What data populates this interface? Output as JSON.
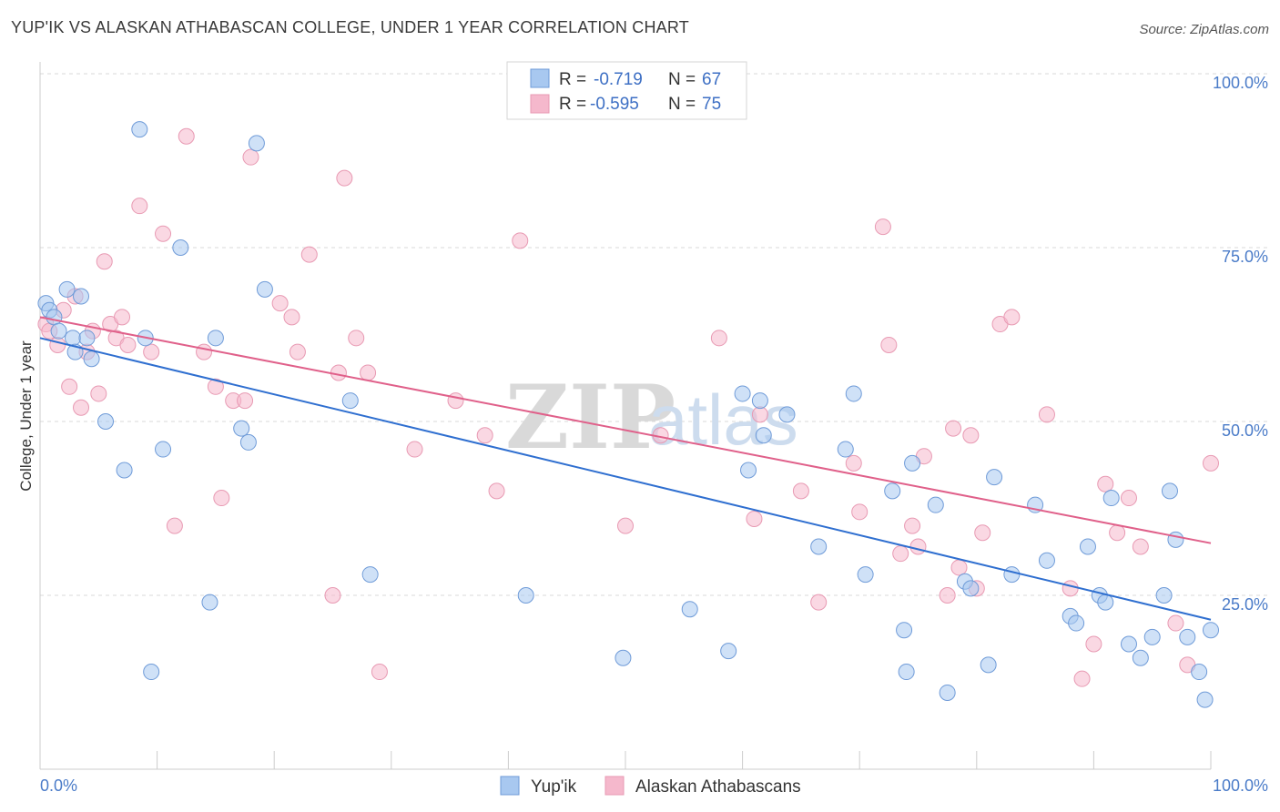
{
  "header": {
    "title": "YUP'IK VS ALASKAN ATHABASCAN COLLEGE, UNDER 1 YEAR CORRELATION CHART",
    "source": "Source: ZipAtlas.com"
  },
  "watermark": {
    "zip": "ZIP",
    "atlas": "atlas"
  },
  "legend_box": {
    "rows": [
      {
        "r_label": "R =",
        "r_value": "-0.719",
        "n_label": "N =",
        "n_value": "67",
        "color": "#a8c8f0"
      },
      {
        "r_label": "R =",
        "r_value": "-0.595",
        "n_label": "N =",
        "n_value": "75",
        "color": "#f5b8cc"
      }
    ]
  },
  "bottom_legend": [
    {
      "label": "Yup'ik",
      "color": "#a8c8f0"
    },
    {
      "label": "Alaskan Athabascans",
      "color": "#f5b8cc"
    }
  ],
  "chart_data": {
    "type": "scatter",
    "title": "YUP'IK VS ALASKAN ATHABASCAN COLLEGE, UNDER 1 YEAR CORRELATION CHART",
    "xlabel": "",
    "ylabel": "College, Under 1 year",
    "x_tick_labels": [
      "0.0%",
      "100.0%"
    ],
    "y_tick_labels": [
      "25.0%",
      "50.0%",
      "75.0%",
      "100.0%"
    ],
    "y_ticks": [
      25,
      50,
      75,
      100
    ],
    "xlim": [
      0,
      100
    ],
    "ylim": [
      0,
      100
    ],
    "grid": true,
    "legend_position": "top-center",
    "colors": {
      "yupik_fill": "#a8c8f0",
      "yupik_stroke": "#6f9bd8",
      "yupik_line": "#2f6fd0",
      "athabascan_fill": "#f5b8cc",
      "athabascan_stroke": "#e89ab3",
      "athabascan_line": "#e0608a"
    },
    "series": [
      {
        "name": "Yup'ik",
        "trend": {
          "x": [
            0,
            100
          ],
          "y": [
            62,
            21.5
          ]
        },
        "points": [
          [
            0.5,
            67
          ],
          [
            0.8,
            66
          ],
          [
            1.2,
            65
          ],
          [
            1.6,
            63
          ],
          [
            2.3,
            69
          ],
          [
            2.8,
            62
          ],
          [
            3.0,
            60
          ],
          [
            3.5,
            68
          ],
          [
            4.0,
            62
          ],
          [
            4.4,
            59
          ],
          [
            5.6,
            50
          ],
          [
            7.2,
            43
          ],
          [
            8.5,
            92
          ],
          [
            9.0,
            62
          ],
          [
            9.5,
            14
          ],
          [
            10.5,
            46
          ],
          [
            12.0,
            75
          ],
          [
            14.5,
            24
          ],
          [
            15.0,
            62
          ],
          [
            17.2,
            49
          ],
          [
            17.8,
            47
          ],
          [
            18.5,
            90
          ],
          [
            19.2,
            69
          ],
          [
            26.5,
            53
          ],
          [
            28.2,
            28
          ],
          [
            41.5,
            25
          ],
          [
            49.8,
            16
          ],
          [
            55.5,
            23
          ],
          [
            58.8,
            17
          ],
          [
            60.0,
            54
          ],
          [
            60.5,
            43
          ],
          [
            61.5,
            53
          ],
          [
            61.8,
            48
          ],
          [
            63.8,
            51
          ],
          [
            66.5,
            32
          ],
          [
            68.8,
            46
          ],
          [
            69.5,
            54
          ],
          [
            70.5,
            28
          ],
          [
            72.8,
            40
          ],
          [
            73.8,
            20
          ],
          [
            74.0,
            14
          ],
          [
            74.5,
            44
          ],
          [
            76.5,
            38
          ],
          [
            77.5,
            11
          ],
          [
            79.0,
            27
          ],
          [
            79.5,
            26
          ],
          [
            81.0,
            15
          ],
          [
            81.5,
            42
          ],
          [
            83.0,
            28
          ],
          [
            85.0,
            38
          ],
          [
            86.0,
            30
          ],
          [
            88.0,
            22
          ],
          [
            88.5,
            21
          ],
          [
            89.5,
            32
          ],
          [
            90.5,
            25
          ],
          [
            91.0,
            24
          ],
          [
            91.5,
            39
          ],
          [
            93.0,
            18
          ],
          [
            94.0,
            16
          ],
          [
            95.0,
            19
          ],
          [
            96.0,
            25
          ],
          [
            96.5,
            40
          ],
          [
            97.0,
            33
          ],
          [
            98.0,
            19
          ],
          [
            99.0,
            14
          ],
          [
            99.5,
            10
          ],
          [
            100.0,
            20
          ]
        ]
      },
      {
        "name": "Alaskan Athabascans",
        "trend": {
          "x": [
            0,
            100
          ],
          "y": [
            65,
            32.5
          ]
        },
        "points": [
          [
            0.5,
            64
          ],
          [
            0.8,
            63
          ],
          [
            1.5,
            61
          ],
          [
            2.0,
            66
          ],
          [
            2.5,
            55
          ],
          [
            3.0,
            68
          ],
          [
            3.5,
            52
          ],
          [
            4.0,
            60
          ],
          [
            4.5,
            63
          ],
          [
            5.0,
            54
          ],
          [
            5.5,
            73
          ],
          [
            6.0,
            64
          ],
          [
            6.5,
            62
          ],
          [
            7.0,
            65
          ],
          [
            7.5,
            61
          ],
          [
            8.5,
            81
          ],
          [
            9.5,
            60
          ],
          [
            10.5,
            77
          ],
          [
            11.5,
            35
          ],
          [
            12.5,
            91
          ],
          [
            14.0,
            60
          ],
          [
            15.0,
            55
          ],
          [
            15.5,
            39
          ],
          [
            16.5,
            53
          ],
          [
            17.5,
            53
          ],
          [
            18.0,
            88
          ],
          [
            20.5,
            67
          ],
          [
            21.5,
            65
          ],
          [
            22.0,
            60
          ],
          [
            23.0,
            74
          ],
          [
            25.0,
            25
          ],
          [
            25.5,
            57
          ],
          [
            26.0,
            85
          ],
          [
            27.0,
            62
          ],
          [
            28.0,
            57
          ],
          [
            29.0,
            14
          ],
          [
            32.0,
            46
          ],
          [
            35.5,
            53
          ],
          [
            38.0,
            48
          ],
          [
            39.0,
            40
          ],
          [
            41.0,
            76
          ],
          [
            50.0,
            35
          ],
          [
            53.0,
            48
          ],
          [
            58.0,
            62
          ],
          [
            61.0,
            36
          ],
          [
            61.5,
            51
          ],
          [
            65.0,
            40
          ],
          [
            66.5,
            24
          ],
          [
            69.5,
            44
          ],
          [
            70.0,
            37
          ],
          [
            72.0,
            78
          ],
          [
            72.5,
            61
          ],
          [
            73.5,
            31
          ],
          [
            74.5,
            35
          ],
          [
            75.0,
            32
          ],
          [
            75.5,
            45
          ],
          [
            77.5,
            25
          ],
          [
            78.0,
            49
          ],
          [
            78.5,
            29
          ],
          [
            79.5,
            48
          ],
          [
            80.0,
            26
          ],
          [
            80.5,
            34
          ],
          [
            82.0,
            64
          ],
          [
            83.0,
            65
          ],
          [
            86.0,
            51
          ],
          [
            88.0,
            26
          ],
          [
            89.0,
            13
          ],
          [
            90.0,
            18
          ],
          [
            91.0,
            41
          ],
          [
            92.0,
            34
          ],
          [
            93.0,
            39
          ],
          [
            94.0,
            32
          ],
          [
            97.0,
            21
          ],
          [
            98.0,
            15
          ],
          [
            100.0,
            44
          ]
        ]
      }
    ]
  }
}
